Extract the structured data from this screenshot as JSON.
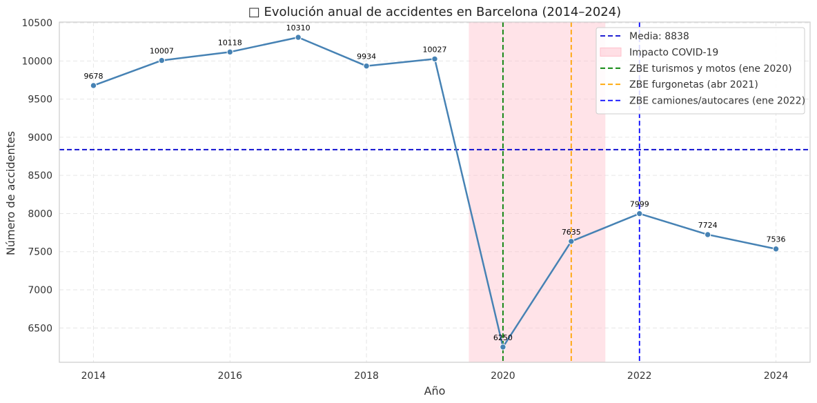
{
  "chart_data": {
    "type": "line",
    "title": "□ Evolución anual de accidentes en Barcelona (2014–2024)",
    "xlabel": "Año",
    "ylabel": "Número de accidentes",
    "xlim": [
      2013.5,
      2024.5
    ],
    "ylim": [
      6050,
      10510
    ],
    "xticks": [
      2014,
      2016,
      2018,
      2020,
      2022,
      2024
    ],
    "yticks": [
      6500,
      7000,
      7500,
      8000,
      8500,
      9000,
      9500,
      10000,
      10500
    ],
    "grid": true,
    "legend_position": "top-right",
    "series": [
      {
        "x": [
          2014,
          2015,
          2016,
          2017,
          2018,
          2019,
          2020,
          2021,
          2022,
          2023,
          2024
        ],
        "values": [
          9678,
          10007,
          10118,
          10310,
          9934,
          10027,
          6250,
          7635,
          7999,
          7724,
          7536
        ],
        "labels": [
          "9678",
          "10007",
          "10118",
          "10310",
          "9934",
          "10027",
          "6250",
          "7635",
          "7999",
          "7724",
          "7536"
        ],
        "color": "#4682b4"
      }
    ],
    "mean_line": {
      "value": 8838,
      "label": "Media: 8838",
      "color": "#0000cd"
    },
    "shaded_region": {
      "x_start": 2019.5,
      "x_end": 2021.5,
      "label": "Impacto COVID-19",
      "color": "#ffc0cb"
    },
    "vertical_lines": [
      {
        "x": 2020.0,
        "label": "ZBE turismos y motos (ene 2020)",
        "color": "#008000"
      },
      {
        "x": 2021.0,
        "label": "ZBE furgonetas (abr 2021)",
        "color": "#ffa500"
      },
      {
        "x": 2022.0,
        "label": "ZBE camiones/autocares (ene 2022)",
        "color": "#0000ff"
      }
    ]
  }
}
